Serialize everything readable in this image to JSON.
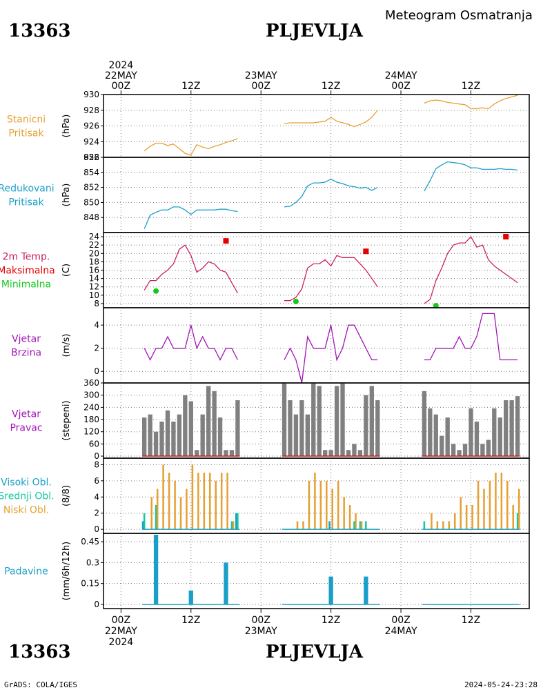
{
  "header": {
    "station_id": "13363",
    "station_name": "PLJEVLJA",
    "subtitle": "Meteogram Osmatranja"
  },
  "footer": {
    "left": "GrADS: COLA/IGES",
    "right": "2024-05-24-23:28"
  },
  "time_axis": {
    "top_labels": [
      {
        "lines": [
          "2024",
          "22MAY",
          "00Z"
        ],
        "hour": 0
      },
      {
        "lines": [
          "12Z"
        ],
        "hour": 12
      },
      {
        "lines": [
          "23MAY",
          "00Z"
        ],
        "hour": 24
      },
      {
        "lines": [
          "12Z"
        ],
        "hour": 36
      },
      {
        "lines": [
          "24MAY",
          "00Z"
        ],
        "hour": 48
      },
      {
        "lines": [
          "12Z"
        ],
        "hour": 60
      }
    ],
    "bottom_labels": [
      {
        "lines": [
          "00Z",
          "22MAY",
          "2024"
        ],
        "hour": 0
      },
      {
        "lines": [
          "12Z"
        ],
        "hour": 12
      },
      {
        "lines": [
          "00Z",
          "23MAY"
        ],
        "hour": 24
      },
      {
        "lines": [
          "12Z"
        ],
        "hour": 36
      },
      {
        "lines": [
          "00Z",
          "24MAY"
        ],
        "hour": 48
      },
      {
        "lines": [
          "12Z"
        ],
        "hour": 60
      }
    ],
    "xlim": [
      -3,
      70
    ]
  },
  "chart_data": [
    {
      "type": "line",
      "labels": [
        {
          "text": "Stanicni",
          "color": "#e6a032"
        },
        {
          "text": "Pritisak",
          "color": "#e6a032"
        }
      ],
      "ylabel": "(hPa)",
      "ylim": [
        922,
        930
      ],
      "yticks": [
        922,
        924,
        926,
        928,
        930
      ],
      "series": [
        {
          "color": "#e6a032",
          "x": [
            4,
            5,
            6,
            7,
            8,
            9,
            10,
            11,
            12,
            13,
            14,
            15,
            16,
            17,
            18,
            19,
            20
          ],
          "y": [
            922.8,
            923.4,
            923.8,
            923.8,
            923.5,
            923.7,
            923.1,
            922.5,
            922.3,
            923.6,
            923.3,
            923.1,
            923.4,
            923.6,
            923.9,
            924.1,
            924.4
          ]
        },
        {
          "color": "#e6a032",
          "x": [
            28,
            29,
            30,
            31,
            32,
            33,
            34,
            35,
            36,
            37,
            38,
            39,
            40,
            41,
            42,
            43,
            44
          ],
          "y": [
            926.3,
            926.4,
            926.4,
            926.4,
            926.4,
            926.4,
            926.5,
            926.6,
            927.1,
            926.6,
            926.4,
            926.2,
            925.9,
            926.2,
            926.5,
            927.1,
            928.0
          ]
        },
        {
          "color": "#e6a032",
          "x": [
            52,
            53,
            54,
            55,
            56,
            57,
            58,
            59,
            60,
            61,
            62,
            63,
            64,
            65,
            66,
            67,
            68
          ],
          "y": [
            928.9,
            929.2,
            929.3,
            929.2,
            929.0,
            928.9,
            928.8,
            928.7,
            928.2,
            928.2,
            928.3,
            928.2,
            928.8,
            929.2,
            929.5,
            929.7,
            929.9
          ]
        }
      ]
    },
    {
      "type": "line",
      "labels": [
        {
          "text": "Redukovani",
          "color": "#1aa0c8"
        },
        {
          "text": "Pritisak",
          "color": "#1aa0c8"
        }
      ],
      "ylabel": "(hPa)",
      "ylim": [
        846,
        856
      ],
      "yticks": [
        848,
        850,
        852,
        854,
        856
      ],
      "series": [
        {
          "color": "#1aa0c8",
          "x": [
            4,
            5,
            6,
            7,
            8,
            9,
            10,
            11,
            12,
            13,
            14,
            15,
            16,
            17,
            18,
            19,
            20
          ],
          "y": [
            846.5,
            848.3,
            848.7,
            849.0,
            849.0,
            849.4,
            849.4,
            849.0,
            848.4,
            849.0,
            849.0,
            849.0,
            849.0,
            849.1,
            849.1,
            848.9,
            848.8
          ]
        },
        {
          "color": "#1aa0c8",
          "x": [
            28,
            29,
            30,
            31,
            32,
            33,
            34,
            35,
            36,
            37,
            38,
            39,
            40,
            41,
            42,
            43,
            44
          ],
          "y": [
            849.4,
            849.5,
            850.0,
            850.8,
            852.2,
            852.6,
            852.6,
            852.7,
            853.1,
            852.7,
            852.5,
            852.2,
            852.1,
            851.9,
            852.0,
            851.6,
            852.0
          ]
        },
        {
          "color": "#1aa0c8",
          "x": [
            52,
            53,
            54,
            55,
            56,
            57,
            58,
            59,
            60,
            61,
            62,
            63,
            64,
            65,
            66,
            67,
            68
          ],
          "y": [
            851.5,
            852.9,
            854.5,
            855.0,
            855.4,
            855.3,
            855.2,
            855.0,
            854.6,
            854.6,
            854.4,
            854.4,
            854.4,
            854.5,
            854.4,
            854.4,
            854.3
          ]
        }
      ]
    },
    {
      "type": "line",
      "labels": [
        {
          "text": "2m Temp.",
          "color": "#c81e64"
        },
        {
          "text": "Maksimalna",
          "color": "#e60000"
        },
        {
          "text": "Minimalna",
          "color": "#14c81e"
        }
      ],
      "ylabel": "(C)",
      "ylim": [
        7,
        25
      ],
      "yticks": [
        8,
        10,
        12,
        14,
        16,
        18,
        20,
        22,
        24
      ],
      "series": [
        {
          "color": "#c81e64",
          "x": [
            4,
            5,
            6,
            7,
            8,
            9,
            10,
            11,
            12,
            13,
            14,
            15,
            16,
            17,
            18,
            19,
            20
          ],
          "y": [
            11.2,
            13.5,
            13.5,
            15.0,
            16.0,
            17.5,
            21.0,
            22.0,
            19.5,
            15.5,
            16.5,
            18.0,
            17.5,
            16.0,
            15.5,
            13.0,
            10.5
          ]
        },
        {
          "color": "#c81e64",
          "x": [
            28,
            29,
            30,
            31,
            32,
            33,
            34,
            35,
            36,
            37,
            38,
            39,
            40,
            41,
            42,
            43,
            44
          ],
          "y": [
            8.7,
            8.7,
            9.5,
            11.5,
            16.5,
            17.5,
            17.5,
            18.5,
            17.0,
            19.5,
            19.0,
            19.0,
            19.0,
            17.5,
            16.0,
            14.0,
            12.0
          ]
        },
        {
          "color": "#c81e64",
          "x": [
            52,
            53,
            54,
            55,
            56,
            57,
            58,
            59,
            60,
            61,
            62,
            63,
            64,
            65,
            66,
            67,
            68
          ],
          "y": [
            8.0,
            9.0,
            13.5,
            16.5,
            20.0,
            22.0,
            22.5,
            22.5,
            24.0,
            21.5,
            22.0,
            18.5,
            17.0,
            16.0,
            15.0,
            14.0,
            13.0
          ]
        }
      ],
      "markers": [
        {
          "shape": "square",
          "color": "#e60000",
          "x": 18,
          "y": 23.0
        },
        {
          "shape": "square",
          "color": "#e60000",
          "x": 42,
          "y": 20.5
        },
        {
          "shape": "square",
          "color": "#e60000",
          "x": 66,
          "y": 24.0
        },
        {
          "shape": "circle",
          "color": "#14c81e",
          "x": 6,
          "y": 11.0
        },
        {
          "shape": "circle",
          "color": "#14c81e",
          "x": 30,
          "y": 8.5
        },
        {
          "shape": "circle",
          "color": "#14c81e",
          "x": 54,
          "y": 7.5
        }
      ]
    },
    {
      "type": "line",
      "labels": [
        {
          "text": "Vjetar",
          "color": "#a014b4"
        },
        {
          "text": "Brzina",
          "color": "#a014b4"
        }
      ],
      "ylabel": "(m/s)",
      "ylim": [
        -1,
        5.5
      ],
      "yticks": [
        0,
        2,
        4
      ],
      "series": [
        {
          "color": "#a014b4",
          "x": [
            4,
            5,
            6,
            7,
            8,
            9,
            10,
            11,
            12,
            13,
            14,
            15,
            16,
            17,
            18,
            19,
            20
          ],
          "y": [
            2,
            1,
            2,
            2,
            3,
            2,
            2,
            2,
            4,
            2,
            3,
            2,
            2,
            1,
            2,
            2,
            1
          ]
        },
        {
          "color": "#a014b4",
          "x": [
            28,
            29,
            30,
            31,
            32,
            33,
            34,
            35,
            36,
            37,
            38,
            39,
            40,
            41,
            42,
            43,
            44
          ],
          "y": [
            1,
            2,
            1,
            -1,
            3,
            2,
            2,
            2,
            4,
            1,
            2,
            4,
            4,
            3,
            2,
            1,
            1
          ]
        },
        {
          "color": "#a014b4",
          "x": [
            52,
            53,
            54,
            55,
            56,
            57,
            58,
            59,
            60,
            61,
            62,
            63,
            64,
            65,
            66,
            67,
            68
          ],
          "y": [
            1,
            1,
            2,
            2,
            2,
            2,
            3,
            2,
            2,
            3,
            5,
            5,
            5,
            1,
            1,
            1,
            1
          ]
        }
      ]
    },
    {
      "type": "bar",
      "labels": [
        {
          "text": "Vjetar",
          "color": "#a014b4"
        },
        {
          "text": "Pravac",
          "color": "#a014b4"
        }
      ],
      "ylabel": "(stepeni)",
      "ylim": [
        -10,
        360
      ],
      "yticks": [
        0,
        60,
        120,
        180,
        240,
        300,
        360
      ],
      "bar_width": 0.75,
      "series": [
        {
          "color": "#808080",
          "x": [
            4,
            5,
            6,
            7,
            8,
            9,
            10,
            11,
            12,
            13,
            14,
            15,
            16,
            17,
            18,
            19,
            20,
            28,
            29,
            30,
            31,
            32,
            33,
            34,
            35,
            36,
            37,
            38,
            39,
            40,
            41,
            42,
            43,
            44,
            52,
            53,
            54,
            55,
            56,
            57,
            58,
            59,
            60,
            61,
            62,
            63,
            64,
            65,
            66,
            67,
            68
          ],
          "values": [
            190,
            205,
            120,
            170,
            225,
            170,
            205,
            300,
            270,
            30,
            205,
            345,
            320,
            190,
            30,
            30,
            275,
            360,
            275,
            205,
            275,
            205,
            360,
            345,
            30,
            30,
            345,
            360,
            30,
            60,
            30,
            300,
            345,
            275,
            320,
            235,
            205,
            100,
            190,
            60,
            30,
            60,
            235,
            170,
            60,
            80,
            235,
            190,
            275,
            275,
            295
          ]
        }
      ],
      "baseline": {
        "color": "#c81e1e"
      }
    },
    {
      "type": "bar",
      "labels": [
        {
          "text": "Visoki Obl.",
          "color": "#1aa0c8"
        },
        {
          "text": "Srednji Obl.",
          "color": "#14c8a0"
        },
        {
          "text": "Niski Obl.",
          "color": "#e6a032"
        }
      ],
      "ylabel": "(8/8)",
      "ylim": [
        -0.5,
        8.8
      ],
      "yticks": [
        0,
        2,
        4,
        6,
        8
      ],
      "series": [
        {
          "name": "Visoki Obl.",
          "color": "#1aa0c8",
          "x": [
            4,
            20,
            36
          ],
          "values": [
            1,
            2,
            1
          ],
          "offset": -0.25
        },
        {
          "name": "Srednji Obl.",
          "color": "#14c8a0",
          "x": [
            4,
            6,
            19,
            20,
            40,
            41,
            42,
            52,
            68
          ],
          "values": [
            2,
            3,
            1,
            2,
            1,
            1,
            1,
            1,
            2
          ],
          "offset": 0
        },
        {
          "name": "Niski Obl.",
          "color": "#e6a032",
          "x": [
            5,
            6,
            7,
            8,
            9,
            10,
            11,
            12,
            13,
            14,
            15,
            16,
            17,
            18,
            19,
            30,
            31,
            32,
            33,
            34,
            35,
            36,
            37,
            38,
            39,
            40,
            41,
            53,
            54,
            55,
            56,
            57,
            58,
            59,
            60,
            61,
            62,
            63,
            64,
            65,
            66,
            67,
            68
          ],
          "values": [
            4,
            5,
            8,
            7,
            6,
            4,
            5,
            8,
            7,
            7,
            7,
            6,
            7,
            7,
            1,
            1,
            1,
            6,
            7,
            6,
            6,
            5,
            6,
            4,
            3,
            2,
            1,
            2,
            1,
            1,
            1,
            2,
            4,
            3,
            3,
            6,
            5,
            6,
            7,
            7,
            6,
            3,
            5
          ],
          "offset": 0.25
        }
      ],
      "baseline": {
        "color": "#1aa0c8"
      }
    },
    {
      "type": "bar",
      "labels": [
        {
          "text": "Padavine",
          "color": "#1aa0c8"
        }
      ],
      "ylabel": "(mm/6h/12h)",
      "ylim": [
        -0.03,
        0.51
      ],
      "yticks": [
        0,
        0.15,
        0.3,
        0.45
      ],
      "bar_width": 0.75,
      "series": [
        {
          "color": "#1aa0c8",
          "x": [
            6,
            12,
            18,
            36,
            42
          ],
          "values": [
            0.5,
            0.1,
            0.3,
            0.2,
            0.2
          ]
        }
      ],
      "baseline": {
        "color": "#1aa0c8",
        "segments": [
          [
            4,
            20
          ],
          [
            28,
            44
          ],
          [
            52,
            68
          ]
        ]
      }
    }
  ]
}
